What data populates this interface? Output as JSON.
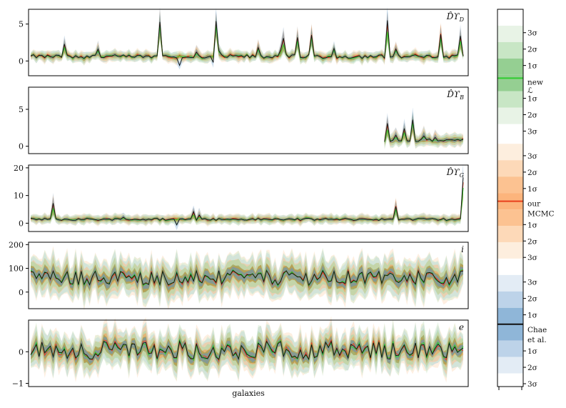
{
  "chart_data": {
    "type": "line",
    "xlabel": "galaxies",
    "n_galaxies": 155,
    "series_colors": {
      "chae": "#1f5f8b",
      "mcmc": "#e8401c",
      "new": "#2ecc2e"
    },
    "band_colors": {
      "chae": [
        "#2c6fa8",
        "#5d95c4",
        "#a9c6e0"
      ],
      "mcmc": [
        "#fb9a50",
        "#fcc08f",
        "#fde2c8"
      ],
      "new": [
        "#5bb85b",
        "#a5d8a3",
        "#d6ecd4"
      ],
      "overlap": "#8f8f3a"
    },
    "panels": [
      {
        "label": "D̂ϒ",
        "label_sub": "D",
        "yticks": [
          "0",
          "5"
        ],
        "ylim": [
          -2,
          7
        ],
        "tick_values": [
          0,
          5
        ],
        "baseline": 0.6,
        "spread": 0.25,
        "start": 0,
        "noise": 0.25,
        "spikes": [
          [
            12,
            2.3
          ],
          [
            24,
            1.6
          ],
          [
            66,
            5.4
          ],
          [
            90,
            3.1
          ],
          [
            100,
            3.5
          ],
          [
            130,
            1.6
          ],
          [
            153,
            3.4
          ],
          [
            185,
            5.3
          ],
          [
            236,
            1.2
          ],
          [
            266,
            1.4
          ],
          [
            325,
            1.8
          ],
          [
            355,
            1.5
          ],
          [
            378,
            3.2
          ],
          [
            430,
            1.7
          ],
          [
            508,
            5.5
          ],
          [
            585,
            3.6
          ]
        ],
        "dips": [
          [
            65,
            -0.2
          ],
          [
            210,
            -0.6
          ]
        ]
      },
      {
        "label": "D̂ϒ",
        "label_sub": "B",
        "yticks": [
          "0",
          "5"
        ],
        "ylim": [
          -1,
          8
        ],
        "tick_values": [
          0,
          5
        ],
        "baseline": 0.8,
        "spread": 0.3,
        "start": 126,
        "noise": 0.18,
        "spikes": [
          [
            127,
            3.1
          ],
          [
            130,
            1.5
          ],
          [
            133,
            2.4
          ],
          [
            136,
            3.6
          ],
          [
            140,
            1.4
          ],
          [
            144,
            1.2
          ]
        ],
        "dips": []
      },
      {
        "label": "D̂ϒ",
        "label_sub": "G",
        "yticks": [
          "0",
          "10",
          "20"
        ],
        "ylim": [
          -3,
          21
        ],
        "tick_values": [
          0,
          10,
          20
        ],
        "baseline": 1.4,
        "spread": 0.6,
        "start": 0,
        "noise": 0.4,
        "spikes": [
          [
            8,
            7.2
          ],
          [
            33,
            2.2
          ],
          [
            58,
            4.2
          ],
          [
            60,
            3.0
          ],
          [
            130,
            6.0
          ],
          [
            154,
            16.5
          ]
        ],
        "dips": [
          [
            52,
            -0.6
          ]
        ]
      },
      {
        "label": "i",
        "label_sub": "",
        "yticks": [
          "0",
          "100",
          "200"
        ],
        "ylim": [
          -70,
          210
        ],
        "tick_values": [
          0,
          100,
          200
        ],
        "baseline": 60,
        "spread": 28,
        "start": 0,
        "noise": 14,
        "spikes": [],
        "dips": []
      },
      {
        "label": "e",
        "label_sub": "",
        "yticks": [
          "−1",
          "0"
        ],
        "ylim": [
          -1.1,
          1.0
        ],
        "tick_values": [
          -1,
          0
        ],
        "baseline": 0.05,
        "spread": 0.2,
        "start": 0,
        "noise": 0.16,
        "spikes": [],
        "dips": []
      }
    ],
    "colorbar": {
      "labels": [
        {
          "text": "3σ",
          "level": 1
        },
        {
          "text": "2σ",
          "level": 2
        },
        {
          "text": "1σ",
          "level": 3
        },
        {
          "text": "new",
          "level": 4
        },
        {
          "text": "ℒ",
          "level": 4.5
        },
        {
          "text": "1σ",
          "level": 5
        },
        {
          "text": "2σ",
          "level": 6
        },
        {
          "text": "3σ",
          "level": 7
        },
        {
          "text": "3σ",
          "level": 8.5
        },
        {
          "text": "2σ",
          "level": 9.5
        },
        {
          "text": "1σ",
          "level": 10.5
        },
        {
          "text": "our",
          "level": 11.4
        },
        {
          "text": "MCMC",
          "level": 12
        },
        {
          "text": "1σ",
          "level": 12.7
        },
        {
          "text": "2σ",
          "level": 13.7
        },
        {
          "text": "3σ",
          "level": 14.7
        },
        {
          "text": "3σ",
          "level": 16.2
        },
        {
          "text": "2σ",
          "level": 17.2
        },
        {
          "text": "1σ",
          "level": 18.2
        },
        {
          "text": "Chae",
          "level": 19.1
        },
        {
          "text": "et al.",
          "level": 19.7
        },
        {
          "text": "1σ",
          "level": 20.4
        },
        {
          "text": "2σ",
          "level": 21.4
        },
        {
          "text": "3σ",
          "level": 22.4
        }
      ]
    }
  }
}
